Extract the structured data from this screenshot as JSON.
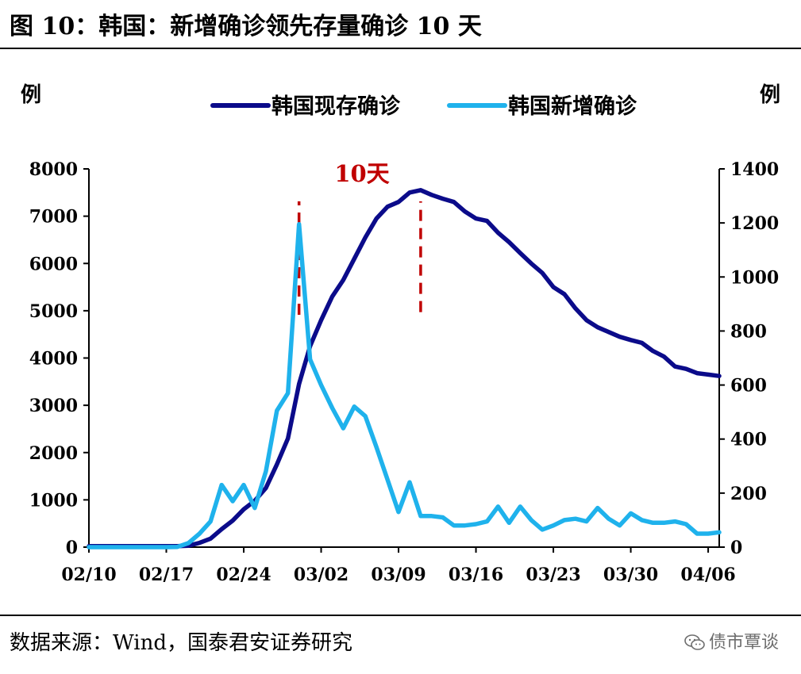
{
  "header": {
    "title": "图 10：韩国：新增确诊领先存量确诊 10 天"
  },
  "footer": {
    "source": "数据来源：Wind，国泰君安证券研究",
    "watermark": "债市覃谈"
  },
  "chart_data": {
    "type": "line",
    "x_tick_labels": [
      "02/10",
      "02/17",
      "02/24",
      "03/02",
      "03/09",
      "03/16",
      "03/23",
      "03/30",
      "04/06"
    ],
    "left_axis": {
      "label": "例",
      "ylim": [
        0,
        8000
      ],
      "ticks": [
        0,
        1000,
        2000,
        3000,
        4000,
        5000,
        6000,
        7000,
        8000
      ]
    },
    "right_axis": {
      "label": "例",
      "ylim": [
        0,
        1400
      ],
      "ticks": [
        0,
        200,
        400,
        600,
        800,
        1000,
        1200,
        1400
      ]
    },
    "annotation": {
      "text": "10天",
      "color": "#c00000"
    },
    "series": [
      {
        "name": "韩国现存确诊",
        "axis": "left",
        "color": "#0b0b8a",
        "x": [
          "2020-02-10",
          "2020-02-11",
          "2020-02-12",
          "2020-02-13",
          "2020-02-14",
          "2020-02-15",
          "2020-02-16",
          "2020-02-17",
          "2020-02-18",
          "2020-02-19",
          "2020-02-20",
          "2020-02-21",
          "2020-02-22",
          "2020-02-23",
          "2020-02-24",
          "2020-02-25",
          "2020-02-26",
          "2020-02-27",
          "2020-02-28",
          "2020-02-29",
          "2020-03-01",
          "2020-03-02",
          "2020-03-03",
          "2020-03-04",
          "2020-03-05",
          "2020-03-06",
          "2020-03-07",
          "2020-03-08",
          "2020-03-09",
          "2020-03-10",
          "2020-03-11",
          "2020-03-12",
          "2020-03-13",
          "2020-03-14",
          "2020-03-15",
          "2020-03-16",
          "2020-03-17",
          "2020-03-18",
          "2020-03-19",
          "2020-03-20",
          "2020-03-21",
          "2020-03-22",
          "2020-03-23",
          "2020-03-24",
          "2020-03-25",
          "2020-03-26",
          "2020-03-27",
          "2020-03-28",
          "2020-03-29",
          "2020-03-30",
          "2020-03-31",
          "2020-04-01",
          "2020-04-02",
          "2020-04-03",
          "2020-04-04",
          "2020-04-05",
          "2020-04-06",
          "2020-04-07"
        ],
        "values": [
          20,
          20,
          20,
          20,
          20,
          20,
          20,
          20,
          20,
          30,
          90,
          180,
          380,
          560,
          800,
          980,
          1250,
          1750,
          2300,
          3450,
          4250,
          4800,
          5300,
          5650,
          6100,
          6550,
          6950,
          7200,
          7300,
          7500,
          7550,
          7450,
          7370,
          7300,
          7100,
          6950,
          6900,
          6650,
          6450,
          6220,
          6000,
          5800,
          5500,
          5350,
          5050,
          4800,
          4650,
          4550,
          4450,
          4380,
          4320,
          4150,
          4030,
          3820,
          3770,
          3680,
          3650,
          3620
        ]
      },
      {
        "name": "韩国新增确诊",
        "axis": "right",
        "color": "#1fb2ec",
        "x": [
          "2020-02-10",
          "2020-02-11",
          "2020-02-12",
          "2020-02-13",
          "2020-02-14",
          "2020-02-15",
          "2020-02-16",
          "2020-02-17",
          "2020-02-18",
          "2020-02-19",
          "2020-02-20",
          "2020-02-21",
          "2020-02-22",
          "2020-02-23",
          "2020-02-24",
          "2020-02-25",
          "2020-02-26",
          "2020-02-27",
          "2020-02-28",
          "2020-02-29",
          "2020-03-01",
          "2020-03-02",
          "2020-03-03",
          "2020-03-04",
          "2020-03-05",
          "2020-03-06",
          "2020-03-07",
          "2020-03-08",
          "2020-03-09",
          "2020-03-10",
          "2020-03-11",
          "2020-03-12",
          "2020-03-13",
          "2020-03-14",
          "2020-03-15",
          "2020-03-16",
          "2020-03-17",
          "2020-03-18",
          "2020-03-19",
          "2020-03-20",
          "2020-03-21",
          "2020-03-22",
          "2020-03-23",
          "2020-03-24",
          "2020-03-25",
          "2020-03-26",
          "2020-03-27",
          "2020-03-28",
          "2020-03-29",
          "2020-03-30",
          "2020-03-31",
          "2020-04-01",
          "2020-04-02",
          "2020-04-03",
          "2020-04-04",
          "2020-04-05",
          "2020-04-06",
          "2020-04-07"
        ],
        "values": [
          0,
          0,
          0,
          0,
          0,
          0,
          0,
          0,
          1,
          15,
          50,
          95,
          230,
          170,
          230,
          145,
          280,
          505,
          570,
          1195,
          695,
          600,
          515,
          440,
          520,
          485,
          370,
          250,
          130,
          240,
          115,
          115,
          110,
          80,
          80,
          85,
          95,
          150,
          90,
          150,
          100,
          65,
          80,
          100,
          105,
          95,
          145,
          105,
          80,
          125,
          100,
          90,
          90,
          95,
          85,
          50,
          50,
          55
        ]
      }
    ],
    "markers": [
      {
        "x": "2020-02-29",
        "axis": "right",
        "from": 860,
        "to": 1280
      },
      {
        "x": "2020-03-11",
        "axis": "right",
        "from": 870,
        "to": 1280
      }
    ],
    "legend": {
      "position": "top",
      "entries": [
        "韩国现存确诊",
        "韩国新增确诊"
      ]
    },
    "grid": false
  }
}
